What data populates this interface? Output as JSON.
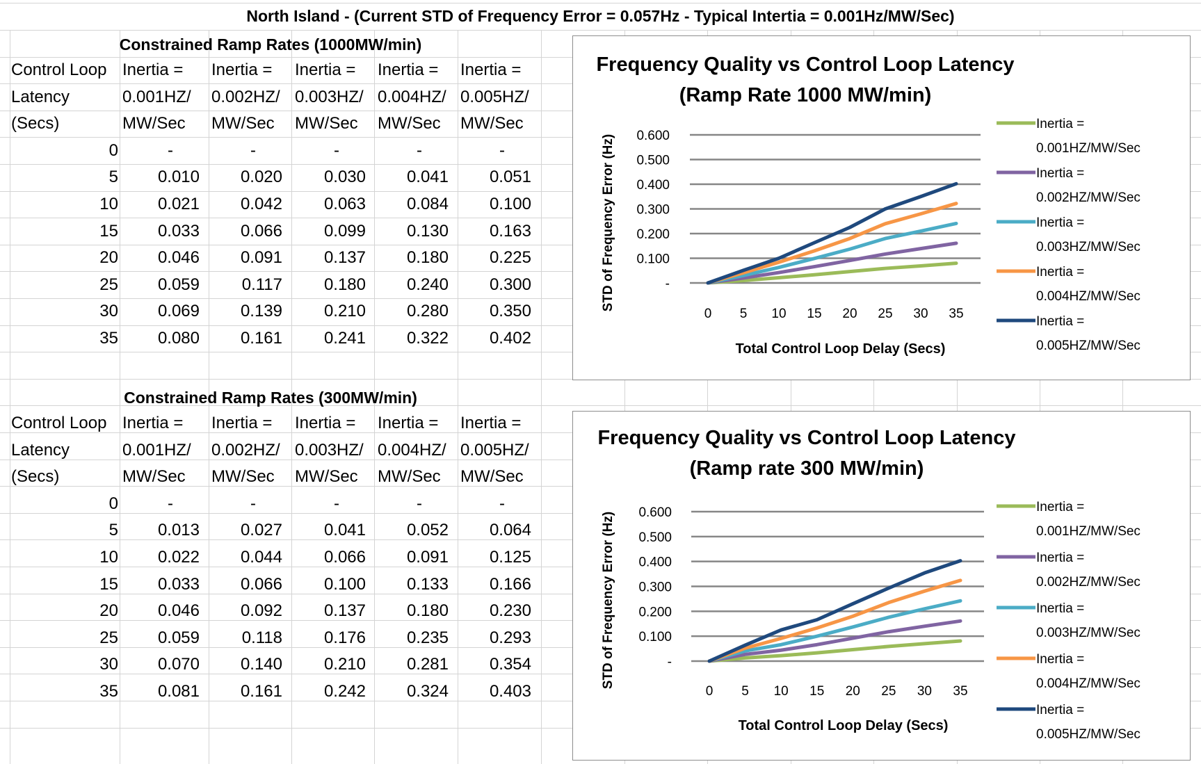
{
  "header": {
    "title": "North Island  - (Current STD of Frequency Error = 0.057Hz - Typical Intertia = 0.001Hz/MW/Sec)"
  },
  "tables": [
    {
      "title": "Constrained Ramp Rates (1000MW/min)",
      "columns": [
        [
          "Control Loop",
          "Latency",
          "(Secs)"
        ],
        [
          "Inertia =",
          "0.001HZ/",
          "MW/Sec"
        ],
        [
          "Inertia =",
          "0.002HZ/",
          "MW/Sec"
        ],
        [
          "Inertia =",
          "0.003HZ/",
          "MW/Sec"
        ],
        [
          "Inertia =",
          "0.004HZ/",
          "MW/Sec"
        ],
        [
          "Inertia =",
          "0.005HZ/",
          "MW/Sec"
        ]
      ],
      "rows": [
        [
          "0",
          "-",
          "-",
          "-",
          "-",
          "-"
        ],
        [
          "5",
          "0.010",
          "0.020",
          "0.030",
          "0.041",
          "0.051"
        ],
        [
          "10",
          "0.021",
          "0.042",
          "0.063",
          "0.084",
          "0.100"
        ],
        [
          "15",
          "0.033",
          "0.066",
          "0.099",
          "0.130",
          "0.163"
        ],
        [
          "20",
          "0.046",
          "0.091",
          "0.137",
          "0.180",
          "0.225"
        ],
        [
          "25",
          "0.059",
          "0.117",
          "0.180",
          "0.240",
          "0.300"
        ],
        [
          "30",
          "0.069",
          "0.139",
          "0.210",
          "0.280",
          "0.350"
        ],
        [
          "35",
          "0.080",
          "0.161",
          "0.241",
          "0.322",
          "0.402"
        ]
      ]
    },
    {
      "title": "Constrained Ramp Rates (300MW/min)",
      "columns": [
        [
          "Control Loop",
          "Latency",
          "(Secs)"
        ],
        [
          "Inertia =",
          "0.001HZ/",
          "MW/Sec"
        ],
        [
          "Inertia =",
          "0.002HZ/",
          "MW/Sec"
        ],
        [
          "Inertia =",
          "0.003HZ/",
          "MW/Sec"
        ],
        [
          "Inertia =",
          "0.004HZ/",
          "MW/Sec"
        ],
        [
          "Inertia =",
          "0.005HZ/",
          "MW/Sec"
        ]
      ],
      "rows": [
        [
          "0",
          "-",
          "-",
          "-",
          "-",
          "-"
        ],
        [
          "5",
          "0.013",
          "0.027",
          "0.041",
          "0.052",
          "0.064"
        ],
        [
          "10",
          "0.022",
          "0.044",
          "0.066",
          "0.091",
          "0.125"
        ],
        [
          "15",
          "0.033",
          "0.066",
          "0.100",
          "0.133",
          "0.166"
        ],
        [
          "20",
          "0.046",
          "0.092",
          "0.137",
          "0.180",
          "0.230"
        ],
        [
          "25",
          "0.059",
          "0.118",
          "0.176",
          "0.235",
          "0.293"
        ],
        [
          "30",
          "0.070",
          "0.140",
          "0.210",
          "0.281",
          "0.354"
        ],
        [
          "35",
          "0.081",
          "0.161",
          "0.242",
          "0.324",
          "0.403"
        ]
      ]
    }
  ],
  "chart_data": [
    {
      "type": "line",
      "title": [
        "Frequency Quality vs Control Loop Latency",
        "(Ramp Rate 1000 MW/min)"
      ],
      "xlabel": "Total Control Loop Delay (Secs)",
      "ylabel": "STD of Frequency Error (Hz)",
      "x": [
        0,
        5,
        10,
        15,
        20,
        25,
        30,
        35
      ],
      "ylim": [
        0,
        0.6
      ],
      "yticks": [
        "-",
        "0.100",
        "0.200",
        "0.300",
        "0.400",
        "0.500",
        "0.600"
      ],
      "grid": true,
      "legend": "right",
      "series": [
        {
          "name": [
            "Inertia =",
            "0.001HZ/MW/Sec"
          ],
          "color": "#9bbb59",
          "values": [
            0,
            0.01,
            0.021,
            0.033,
            0.046,
            0.059,
            0.069,
            0.08
          ]
        },
        {
          "name": [
            "Inertia =",
            "0.002HZ/MW/Sec"
          ],
          "color": "#8064a2",
          "values": [
            0,
            0.02,
            0.042,
            0.066,
            0.091,
            0.117,
            0.139,
            0.161
          ]
        },
        {
          "name": [
            "Inertia =",
            "0.003HZ/MW/Sec"
          ],
          "color": "#4bacc6",
          "values": [
            0,
            0.03,
            0.063,
            0.099,
            0.137,
            0.18,
            0.21,
            0.241
          ]
        },
        {
          "name": [
            "Inertia =",
            "0.004HZ/MW/Sec"
          ],
          "color": "#f79646",
          "values": [
            0,
            0.041,
            0.084,
            0.13,
            0.18,
            0.24,
            0.28,
            0.322
          ]
        },
        {
          "name": [
            "Inertia =",
            "0.005HZ/MW/Sec"
          ],
          "color": "#1f497d",
          "values": [
            0,
            0.051,
            0.1,
            0.163,
            0.225,
            0.3,
            0.35,
            0.402
          ]
        }
      ]
    },
    {
      "type": "line",
      "title": [
        "Frequency Quality vs Control Loop Latency",
        "(Ramp rate 300 MW/min)"
      ],
      "xlabel": "Total Control Loop Delay (Secs)",
      "ylabel": "STD of Frequency Error (Hz)",
      "x": [
        0,
        5,
        10,
        15,
        20,
        25,
        30,
        35
      ],
      "ylim": [
        0,
        0.6
      ],
      "yticks": [
        "-",
        "0.100",
        "0.200",
        "0.300",
        "0.400",
        "0.500",
        "0.600"
      ],
      "grid": true,
      "legend": "right",
      "series": [
        {
          "name": [
            "Inertia =",
            "0.001HZ/MW/Sec"
          ],
          "color": "#9bbb59",
          "values": [
            0,
            0.013,
            0.022,
            0.033,
            0.046,
            0.059,
            0.07,
            0.081
          ]
        },
        {
          "name": [
            "Inertia =",
            "0.002HZ/MW/Sec"
          ],
          "color": "#8064a2",
          "values": [
            0,
            0.027,
            0.044,
            0.066,
            0.092,
            0.118,
            0.14,
            0.161
          ]
        },
        {
          "name": [
            "Inertia =",
            "0.003HZ/MW/Sec"
          ],
          "color": "#4bacc6",
          "values": [
            0,
            0.041,
            0.066,
            0.1,
            0.137,
            0.176,
            0.21,
            0.242
          ]
        },
        {
          "name": [
            "Inertia =",
            "0.004HZ/MW/Sec"
          ],
          "color": "#f79646",
          "values": [
            0,
            0.052,
            0.091,
            0.133,
            0.18,
            0.235,
            0.281,
            0.324
          ]
        },
        {
          "name": [
            "Inertia =",
            "0.005HZ/MW/Sec"
          ],
          "color": "#1f497d",
          "values": [
            0,
            0.064,
            0.125,
            0.166,
            0.23,
            0.293,
            0.354,
            0.403
          ]
        }
      ]
    }
  ]
}
